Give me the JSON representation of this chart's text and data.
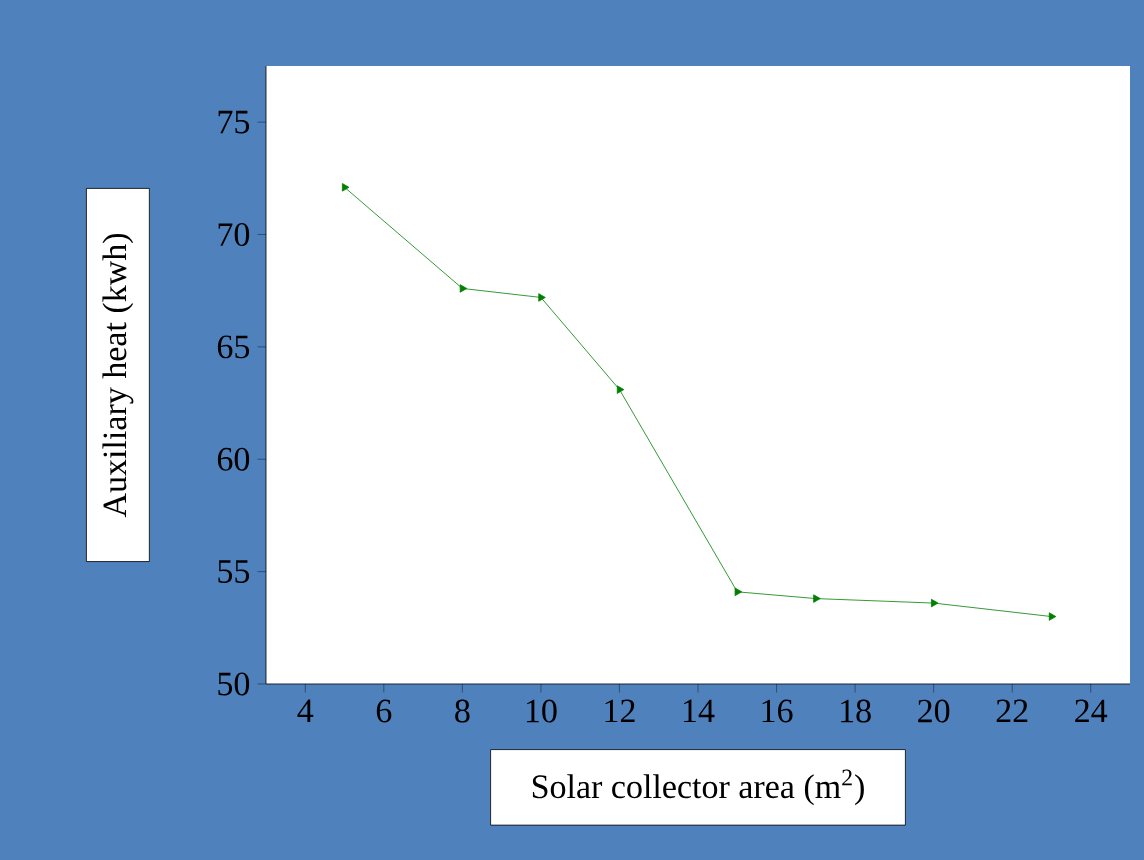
{
  "chart_data": {
    "type": "line",
    "xlabel": "Solar collector area (m$^{2}$)",
    "ylabel": "Auxiliary heat (kwh)",
    "x": [
      5,
      8,
      10,
      12,
      15,
      17,
      20,
      23
    ],
    "series": [
      {
        "color": "#008000",
        "values": [
          72.1,
          67.6,
          67.2,
          63.1,
          54.1,
          53.8,
          53.6,
          53.0
        ]
      }
    ],
    "xlim": [
      3,
      25
    ],
    "ylim": [
      50,
      77.5
    ],
    "xticks": [
      4,
      6,
      8,
      10,
      12,
      14,
      16,
      18,
      20,
      22,
      24
    ],
    "yticks": [
      50,
      55,
      60,
      65,
      70,
      75
    ],
    "marker": "triangle",
    "line_style": "solid",
    "grid": false
  }
}
